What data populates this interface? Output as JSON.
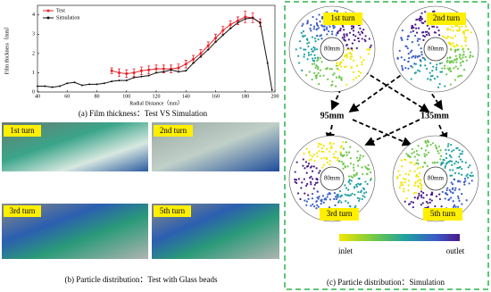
{
  "chart_data": {
    "type": "line",
    "caption": "(a) Film thickness：Test VS Simulation",
    "x_label": "Radial Distance（mm）",
    "y_label": "Film thickness（mm）",
    "x": [
      40,
      45,
      50,
      55,
      60,
      65,
      70,
      75,
      80,
      85,
      90,
      95,
      100,
      105,
      110,
      115,
      120,
      125,
      130,
      135,
      140,
      145,
      150,
      155,
      160,
      165,
      170,
      175,
      180,
      185,
      190,
      195,
      198
    ],
    "series": [
      {
        "name": "Test",
        "color": "#e8202a",
        "values": [
          null,
          null,
          null,
          null,
          null,
          null,
          null,
          null,
          null,
          null,
          1.1,
          1.0,
          0.95,
          1.0,
          1.1,
          1.15,
          1.2,
          1.2,
          1.2,
          1.25,
          1.45,
          1.7,
          2.0,
          2.4,
          2.8,
          3.2,
          3.5,
          3.7,
          3.9,
          3.85,
          3.6,
          null,
          null
        ],
        "errors": [
          null,
          null,
          null,
          null,
          null,
          null,
          null,
          null,
          null,
          null,
          0.15,
          0.2,
          0.2,
          0.2,
          0.2,
          0.2,
          0.2,
          0.2,
          0.2,
          0.2,
          0.2,
          0.2,
          0.2,
          0.2,
          0.2,
          0.2,
          0.2,
          0.2,
          0.3,
          0.25,
          0.2,
          null,
          null
        ]
      },
      {
        "name": "Simulation",
        "color": "#111111",
        "values": [
          0.3,
          0.3,
          0.25,
          0.3,
          0.45,
          0.5,
          0.35,
          0.4,
          0.4,
          0.45,
          0.55,
          0.6,
          0.6,
          0.75,
          0.8,
          0.85,
          1.0,
          1.05,
          1.15,
          1.05,
          1.1,
          1.5,
          1.85,
          2.2,
          2.6,
          2.95,
          3.3,
          3.6,
          3.8,
          3.85,
          3.6,
          1.5,
          0.1
        ]
      }
    ],
    "xlim": [
      40,
      200
    ],
    "xticks": [
      40,
      60,
      80,
      100,
      120,
      140,
      160,
      180,
      200
    ],
    "ylim": [
      0,
      4.5
    ],
    "yticks": [
      0,
      1,
      2,
      3,
      4
    ],
    "grid": false,
    "legend": "upper left"
  },
  "panel_b": {
    "caption": "(b) Particle distribution：Test  with Glass beads",
    "photos": [
      "1st turn",
      "2nd turn",
      "3rd turn",
      "5th turn"
    ]
  },
  "panel_c": {
    "caption": "(c) Particle distribution：Simulation",
    "discs": [
      {
        "label": "1st turn",
        "center": "80mm"
      },
      {
        "label": "2nd turn",
        "center": "80mm"
      },
      {
        "label": "3rd turn",
        "center": "80mm"
      },
      {
        "label": "5th turn",
        "center": "80mm"
      }
    ],
    "distances": [
      "95mm",
      "135mm"
    ],
    "colorbar": {
      "low": "inlet",
      "high": "outlet"
    }
  }
}
